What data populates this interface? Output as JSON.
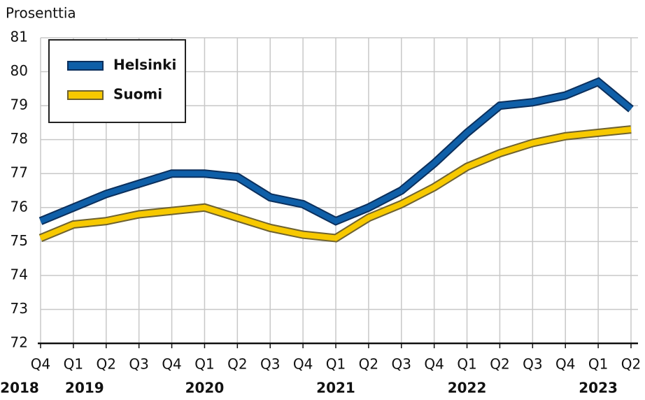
{
  "chart_data": {
    "type": "line",
    "y_label": "Prosenttia",
    "categories": [
      "Q4",
      "Q1",
      "Q2",
      "Q3",
      "Q4",
      "Q1",
      "Q2",
      "Q3",
      "Q4",
      "Q1",
      "Q2",
      "Q3",
      "Q4",
      "Q1",
      "Q2",
      "Q3",
      "Q4",
      "Q1",
      "Q2"
    ],
    "years": [
      "2018",
      "2019",
      null,
      null,
      null,
      "2020",
      null,
      null,
      null,
      "2021",
      null,
      null,
      null,
      "2022",
      null,
      null,
      null,
      "2023",
      null
    ],
    "series": [
      {
        "name": "Helsinki",
        "color": "#0f5fa8",
        "outline": "#0b2f5c",
        "values": [
          75.6,
          76.0,
          76.4,
          76.7,
          77.0,
          77.0,
          76.9,
          76.3,
          76.1,
          75.6,
          76.0,
          76.5,
          77.3,
          78.2,
          79.0,
          79.1,
          79.3,
          79.7,
          78.9
        ]
      },
      {
        "name": "Suomi",
        "color": "#f7c900",
        "outline": "#6e6230",
        "values": [
          75.1,
          75.5,
          75.6,
          75.8,
          75.9,
          76.0,
          75.7,
          75.4,
          75.2,
          75.1,
          75.7,
          76.1,
          76.6,
          77.2,
          77.6,
          77.9,
          78.1,
          78.2,
          78.3
        ]
      }
    ],
    "ylim": [
      72,
      81
    ],
    "yticks": [
      72,
      73,
      74,
      75,
      76,
      77,
      78,
      79,
      80,
      81
    ],
    "grid": true,
    "legend": "top-left"
  }
}
